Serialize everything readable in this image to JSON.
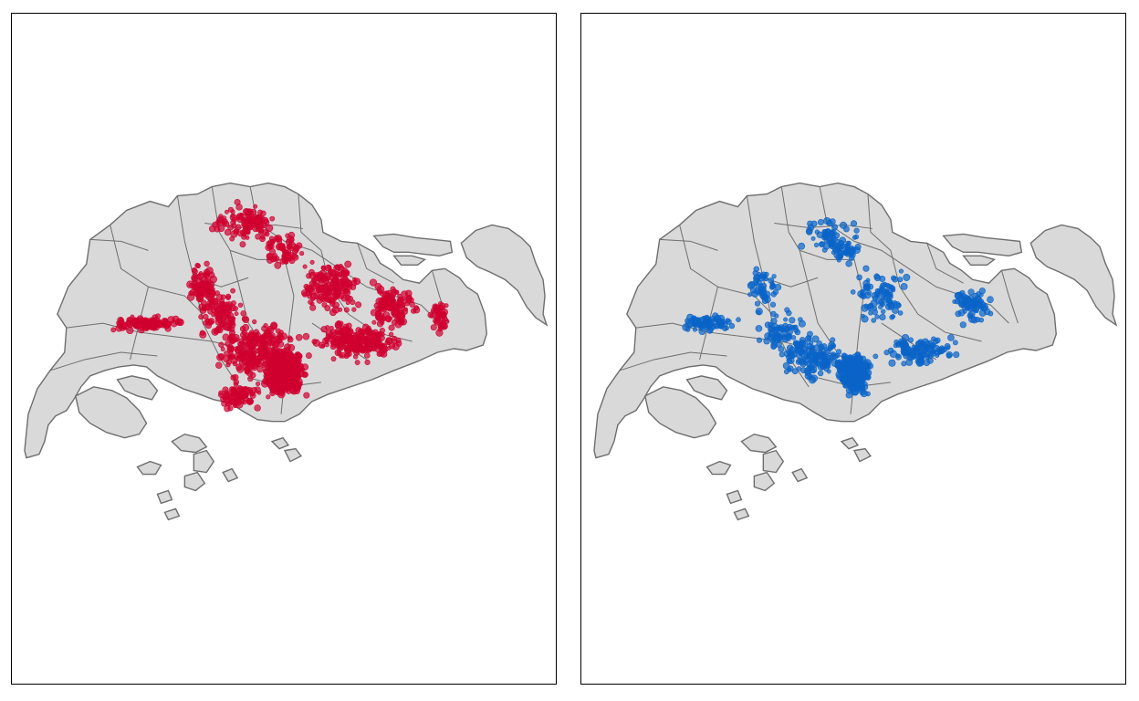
{
  "maps": [
    {
      "id": "left",
      "point_color": "#d0002f"
    },
    {
      "id": "right",
      "point_color": "#0a64c8"
    }
  ],
  "land_fill": "#d9d9d9",
  "land_stroke": "#6e6e6e",
  "background": "#ffffff"
}
